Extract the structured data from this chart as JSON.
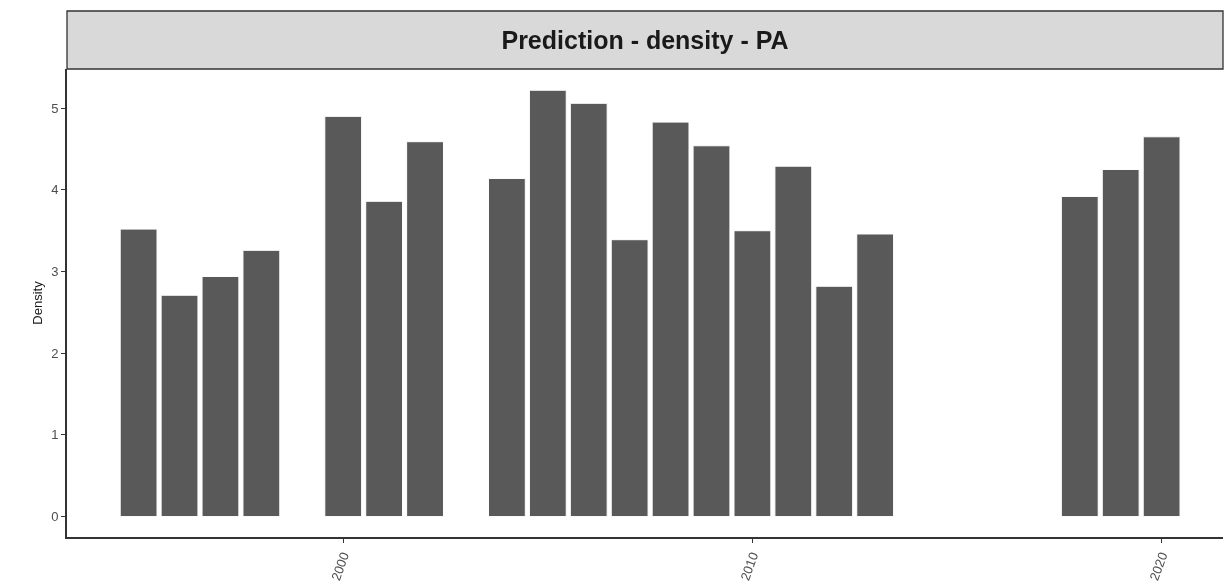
{
  "chart_data": {
    "type": "bar",
    "title": "Prediction - density - PA",
    "ylabel": "Density",
    "x": [
      1995,
      1996,
      1997,
      1998,
      2000,
      2001,
      2002,
      2004,
      2005,
      2006,
      2007,
      2008,
      2009,
      2010,
      2011,
      2012,
      2013,
      2018,
      2019,
      2020
    ],
    "values": [
      3.52,
      2.71,
      2.94,
      3.26,
      4.9,
      3.86,
      4.59,
      4.14,
      5.22,
      5.06,
      3.39,
      4.83,
      4.54,
      3.5,
      4.29,
      2.82,
      3.46,
      3.92,
      4.25,
      4.65
    ],
    "color": "#595959",
    "xlim": [
      1993.25,
      2021.5
    ],
    "xticks": [
      2000,
      2010,
      2020
    ],
    "ylim": [
      -0.25,
      5.48
    ],
    "yticks": [
      0,
      1,
      2,
      3,
      4,
      5
    ],
    "grid": false
  }
}
